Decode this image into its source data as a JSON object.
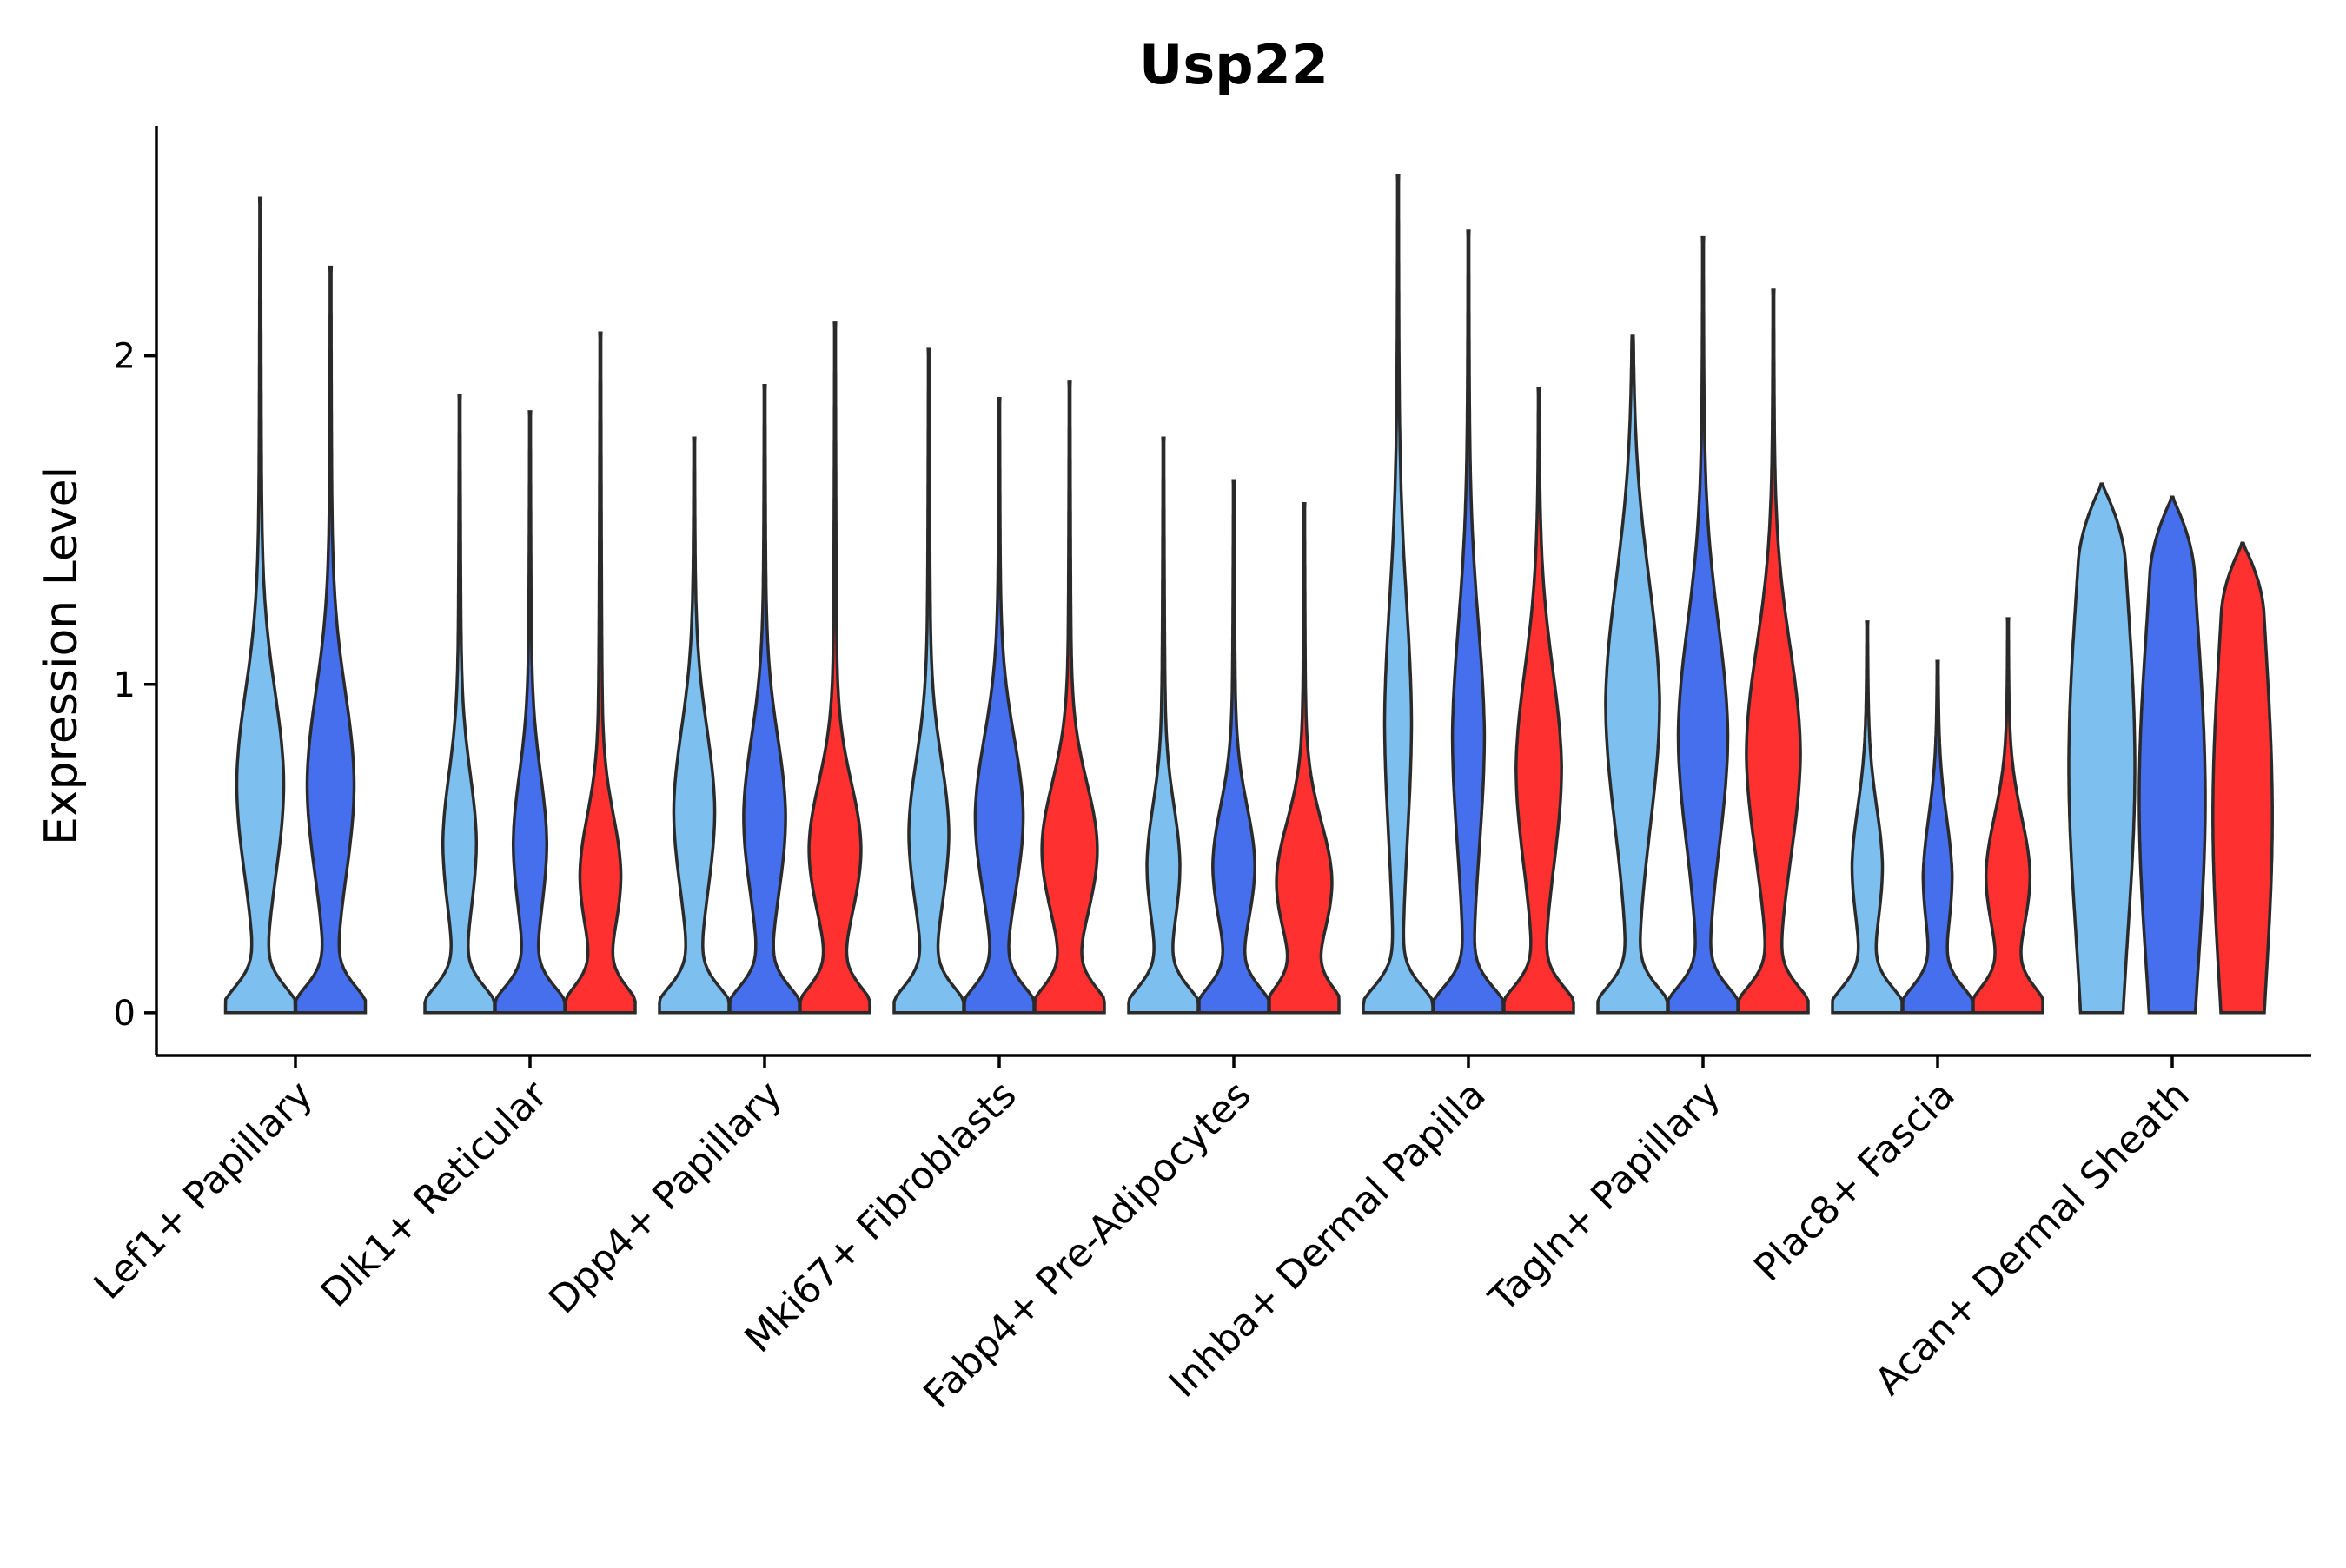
{
  "chart_data": {
    "type": "violin",
    "title": "Usp22",
    "xlabel": "",
    "ylabel": "Expression Level",
    "ylim": [
      -0.13,
      2.7
    ],
    "yticks": [
      0,
      1,
      2
    ],
    "grid": false,
    "legend": "none",
    "colors": {
      "Cond1": "#7dbfef",
      "Cond2": "#466fee",
      "Cond3": "#ff3030",
      "outline": "#2a2a2a"
    },
    "groups": [
      {
        "category": "Lef1+ Papillary",
        "violins": [
          {
            "series": "Cond1",
            "max": 2.48,
            "shape": "bimodal",
            "peak": 0.7,
            "width": 0.8
          },
          {
            "series": "Cond2",
            "max": 2.27,
            "shape": "bimodal",
            "peak": 0.7,
            "width": 0.8
          }
        ]
      },
      {
        "category": "Dlk1+ Reticular",
        "violins": [
          {
            "series": "Cond1",
            "max": 1.88,
            "shape": "bimodal",
            "peak": 0.52,
            "width": 0.53
          },
          {
            "series": "Cond2",
            "max": 1.83,
            "shape": "bimodal",
            "peak": 0.52,
            "width": 0.53
          },
          {
            "series": "Cond3",
            "max": 2.07,
            "shape": "bimodal",
            "peak": 0.42,
            "width": 0.68
          }
        ]
      },
      {
        "category": "Dpp4+ Papillary",
        "violins": [
          {
            "series": "Cond1",
            "max": 1.75,
            "shape": "bimodal",
            "peak": 0.62,
            "width": 0.68
          },
          {
            "series": "Cond2",
            "max": 1.91,
            "shape": "bimodal",
            "peak": 0.6,
            "width": 0.7
          },
          {
            "series": "Cond3",
            "max": 2.1,
            "shape": "bimodal",
            "peak": 0.5,
            "width": 0.9
          }
        ]
      },
      {
        "category": "Mki67+ Fibroblasts",
        "violins": [
          {
            "series": "Cond1",
            "max": 2.02,
            "shape": "bimodal",
            "peak": 0.55,
            "width": 0.66
          },
          {
            "series": "Cond2",
            "max": 1.87,
            "shape": "bimodal",
            "peak": 0.6,
            "width": 0.82
          },
          {
            "series": "Cond3",
            "max": 1.92,
            "shape": "bimodal",
            "peak": 0.5,
            "width": 0.97
          }
        ]
      },
      {
        "category": "Fabp4+ Pre-Adipocytes",
        "violins": [
          {
            "series": "Cond1",
            "max": 1.75,
            "shape": "bimodal",
            "peak": 0.45,
            "width": 0.52
          },
          {
            "series": "Cond2",
            "max": 1.62,
            "shape": "bimodal",
            "peak": 0.45,
            "width": 0.7
          },
          {
            "series": "Cond3",
            "max": 1.55,
            "shape": "bimodal",
            "peak": 0.4,
            "width": 0.97
          }
        ]
      },
      {
        "category": "Inhba+ Dermal Papilla",
        "violins": [
          {
            "series": "Cond1",
            "max": 2.55,
            "shape": "bimodal",
            "peak": 0.9,
            "width": 0.4
          },
          {
            "series": "Cond2",
            "max": 2.38,
            "shape": "bimodal",
            "peak": 0.85,
            "width": 0.5
          },
          {
            "series": "Cond3",
            "max": 1.9,
            "shape": "bimodal",
            "peak": 0.75,
            "width": 0.77
          }
        ]
      },
      {
        "category": "Tagln+ Papillary",
        "violins": [
          {
            "series": "Cond1",
            "max": 2.06,
            "shape": "bimodal",
            "peak": 0.95,
            "width": 0.94
          },
          {
            "series": "Cond2",
            "max": 2.36,
            "shape": "bimodal",
            "peak": 0.85,
            "width": 0.85
          },
          {
            "series": "Cond3",
            "max": 2.2,
            "shape": "bimodal",
            "peak": 0.8,
            "width": 0.94
          }
        ]
      },
      {
        "category": "Plac8+ Fascia",
        "violins": [
          {
            "series": "Cond1",
            "max": 1.19,
            "shape": "bimodal",
            "peak": 0.45,
            "width": 0.47
          },
          {
            "series": "Cond2",
            "max": 1.07,
            "shape": "bimodal",
            "peak": 0.42,
            "width": 0.44
          },
          {
            "series": "Cond3",
            "max": 1.2,
            "shape": "bimodal",
            "peak": 0.42,
            "width": 0.74
          }
        ]
      },
      {
        "category": "Acan+ Dermal Sheath",
        "violins": [
          {
            "series": "Cond1",
            "max": 1.61,
            "shape": "wide",
            "peak": 0.75,
            "width": 1.0
          },
          {
            "series": "Cond2",
            "max": 1.57,
            "shape": "wide",
            "peak": 0.65,
            "width": 1.0
          },
          {
            "series": "Cond3",
            "max": 1.43,
            "shape": "wide",
            "peak": 0.6,
            "width": 0.9
          }
        ]
      }
    ]
  }
}
